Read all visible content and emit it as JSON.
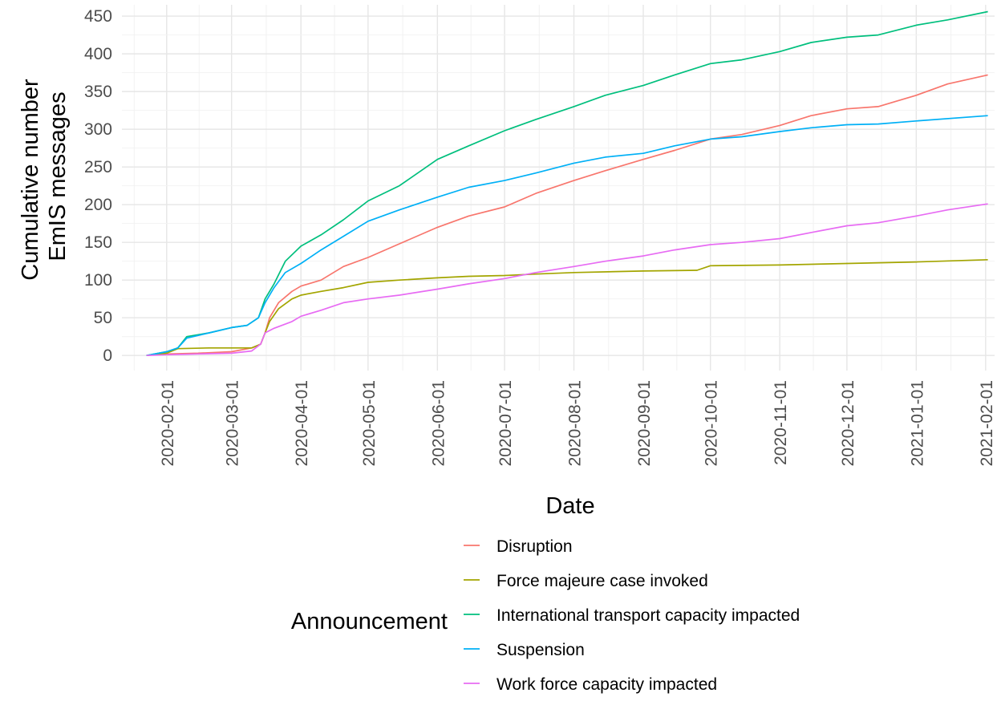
{
  "chart_data": {
    "type": "line",
    "title": "",
    "xlabel": "Date",
    "ylabel_lines": [
      "Cumulative number",
      "EmIS messages"
    ],
    "x_tick_labels": [
      "2020-02-01",
      "2020-03-01",
      "2020-04-01",
      "2020-05-01",
      "2020-06-01",
      "2020-07-01",
      "2020-08-01",
      "2020-09-01",
      "2020-10-01",
      "2020-11-01",
      "2020-12-01",
      "2021-01-01",
      "2021-02-01"
    ],
    "y_tick_labels": [
      "0",
      "50",
      "100",
      "150",
      "200",
      "250",
      "300",
      "350",
      "400",
      "450"
    ],
    "y_ticks": [
      0,
      50,
      100,
      150,
      200,
      250,
      300,
      350,
      400,
      450
    ],
    "xlim": [
      "2020-01-12",
      "2021-02-05"
    ],
    "ylim": [
      -20,
      465
    ],
    "grid": true,
    "legend": {
      "title": "Announcement",
      "position": "bottom"
    },
    "series": [
      {
        "name": "Disruption",
        "color": "#F8766D",
        "points": [
          [
            "2020-01-23",
            0
          ],
          [
            "2020-02-01",
            2
          ],
          [
            "2020-02-15",
            3
          ],
          [
            "2020-03-01",
            5
          ],
          [
            "2020-03-10",
            10
          ],
          [
            "2020-03-14",
            15
          ],
          [
            "2020-03-16",
            30
          ],
          [
            "2020-03-18",
            50
          ],
          [
            "2020-03-22",
            70
          ],
          [
            "2020-03-28",
            85
          ],
          [
            "2020-04-01",
            92
          ],
          [
            "2020-04-10",
            100
          ],
          [
            "2020-04-20",
            118
          ],
          [
            "2020-05-01",
            130
          ],
          [
            "2020-05-15",
            148
          ],
          [
            "2020-06-01",
            170
          ],
          [
            "2020-06-15",
            185
          ],
          [
            "2020-07-01",
            197
          ],
          [
            "2020-07-15",
            215
          ],
          [
            "2020-08-01",
            232
          ],
          [
            "2020-08-15",
            245
          ],
          [
            "2020-09-01",
            260
          ],
          [
            "2020-09-15",
            272
          ],
          [
            "2020-10-01",
            287
          ],
          [
            "2020-10-15",
            293
          ],
          [
            "2020-11-01",
            305
          ],
          [
            "2020-11-15",
            318
          ],
          [
            "2020-12-01",
            327
          ],
          [
            "2020-12-15",
            330
          ],
          [
            "2021-01-01",
            345
          ],
          [
            "2021-01-15",
            360
          ],
          [
            "2021-02-02",
            372
          ]
        ]
      },
      {
        "name": "Force majeure case invoked",
        "color": "#A3A500",
        "points": [
          [
            "2020-01-23",
            0
          ],
          [
            "2020-02-01",
            3
          ],
          [
            "2020-02-06",
            9
          ],
          [
            "2020-02-20",
            10
          ],
          [
            "2020-03-10",
            10
          ],
          [
            "2020-03-14",
            15
          ],
          [
            "2020-03-16",
            30
          ],
          [
            "2020-03-18",
            45
          ],
          [
            "2020-03-22",
            62
          ],
          [
            "2020-03-28",
            75
          ],
          [
            "2020-04-01",
            80
          ],
          [
            "2020-04-10",
            85
          ],
          [
            "2020-04-20",
            90
          ],
          [
            "2020-05-01",
            97
          ],
          [
            "2020-05-15",
            100
          ],
          [
            "2020-06-01",
            103
          ],
          [
            "2020-06-15",
            105
          ],
          [
            "2020-07-01",
            106
          ],
          [
            "2020-07-15",
            108
          ],
          [
            "2020-08-01",
            110
          ],
          [
            "2020-09-01",
            112
          ],
          [
            "2020-09-25",
            113
          ],
          [
            "2020-10-01",
            119
          ],
          [
            "2020-11-01",
            120
          ],
          [
            "2020-12-01",
            122
          ],
          [
            "2021-01-01",
            124
          ],
          [
            "2021-02-02",
            127
          ]
        ]
      },
      {
        "name": "International transport capacity impacted",
        "color": "#00BF7D",
        "points": [
          [
            "2020-01-23",
            0
          ],
          [
            "2020-02-01",
            5
          ],
          [
            "2020-02-06",
            10
          ],
          [
            "2020-02-10",
            25
          ],
          [
            "2020-02-20",
            30
          ],
          [
            "2020-03-01",
            37
          ],
          [
            "2020-03-08",
            40
          ],
          [
            "2020-03-13",
            50
          ],
          [
            "2020-03-16",
            75
          ],
          [
            "2020-03-20",
            95
          ],
          [
            "2020-03-25",
            125
          ],
          [
            "2020-04-01",
            145
          ],
          [
            "2020-04-10",
            160
          ],
          [
            "2020-04-20",
            180
          ],
          [
            "2020-05-01",
            205
          ],
          [
            "2020-05-15",
            225
          ],
          [
            "2020-06-01",
            260
          ],
          [
            "2020-06-15",
            278
          ],
          [
            "2020-07-01",
            298
          ],
          [
            "2020-07-15",
            313
          ],
          [
            "2020-08-01",
            330
          ],
          [
            "2020-08-15",
            345
          ],
          [
            "2020-09-01",
            358
          ],
          [
            "2020-09-15",
            372
          ],
          [
            "2020-10-01",
            387
          ],
          [
            "2020-10-15",
            392
          ],
          [
            "2020-11-01",
            403
          ],
          [
            "2020-11-15",
            415
          ],
          [
            "2020-12-01",
            422
          ],
          [
            "2020-12-15",
            425
          ],
          [
            "2021-01-01",
            438
          ],
          [
            "2021-01-15",
            445
          ],
          [
            "2021-02-02",
            456
          ]
        ]
      },
      {
        "name": "Suspension",
        "color": "#00B0F6",
        "points": [
          [
            "2020-01-23",
            0
          ],
          [
            "2020-02-01",
            5
          ],
          [
            "2020-02-06",
            10
          ],
          [
            "2020-02-10",
            23
          ],
          [
            "2020-02-20",
            30
          ],
          [
            "2020-03-01",
            37
          ],
          [
            "2020-03-08",
            40
          ],
          [
            "2020-03-13",
            50
          ],
          [
            "2020-03-16",
            70
          ],
          [
            "2020-03-20",
            90
          ],
          [
            "2020-03-25",
            110
          ],
          [
            "2020-04-01",
            122
          ],
          [
            "2020-04-10",
            140
          ],
          [
            "2020-04-20",
            158
          ],
          [
            "2020-05-01",
            178
          ],
          [
            "2020-05-15",
            193
          ],
          [
            "2020-06-01",
            210
          ],
          [
            "2020-06-15",
            223
          ],
          [
            "2020-07-01",
            232
          ],
          [
            "2020-07-15",
            242
          ],
          [
            "2020-08-01",
            255
          ],
          [
            "2020-08-15",
            263
          ],
          [
            "2020-09-01",
            268
          ],
          [
            "2020-09-15",
            278
          ],
          [
            "2020-10-01",
            287
          ],
          [
            "2020-10-15",
            290
          ],
          [
            "2020-11-01",
            297
          ],
          [
            "2020-11-15",
            302
          ],
          [
            "2020-12-01",
            306
          ],
          [
            "2020-12-15",
            307
          ],
          [
            "2021-01-01",
            311
          ],
          [
            "2021-02-02",
            318
          ]
        ]
      },
      {
        "name": "Work force capacity impacted",
        "color": "#E76BF3",
        "points": [
          [
            "2020-01-23",
            0
          ],
          [
            "2020-02-01",
            1
          ],
          [
            "2020-02-15",
            2
          ],
          [
            "2020-03-01",
            3
          ],
          [
            "2020-03-10",
            6
          ],
          [
            "2020-03-14",
            15
          ],
          [
            "2020-03-16",
            30
          ],
          [
            "2020-03-20",
            36
          ],
          [
            "2020-03-28",
            45
          ],
          [
            "2020-04-01",
            52
          ],
          [
            "2020-04-10",
            60
          ],
          [
            "2020-04-20",
            70
          ],
          [
            "2020-05-01",
            75
          ],
          [
            "2020-05-15",
            80
          ],
          [
            "2020-06-01",
            88
          ],
          [
            "2020-06-15",
            95
          ],
          [
            "2020-07-01",
            102
          ],
          [
            "2020-07-15",
            110
          ],
          [
            "2020-08-01",
            118
          ],
          [
            "2020-08-15",
            125
          ],
          [
            "2020-09-01",
            132
          ],
          [
            "2020-09-15",
            140
          ],
          [
            "2020-10-01",
            147
          ],
          [
            "2020-10-15",
            150
          ],
          [
            "2020-11-01",
            155
          ],
          [
            "2020-11-15",
            163
          ],
          [
            "2020-12-01",
            172
          ],
          [
            "2020-12-15",
            176
          ],
          [
            "2021-01-01",
            185
          ],
          [
            "2021-01-15",
            193
          ],
          [
            "2021-02-02",
            201
          ]
        ]
      }
    ]
  }
}
